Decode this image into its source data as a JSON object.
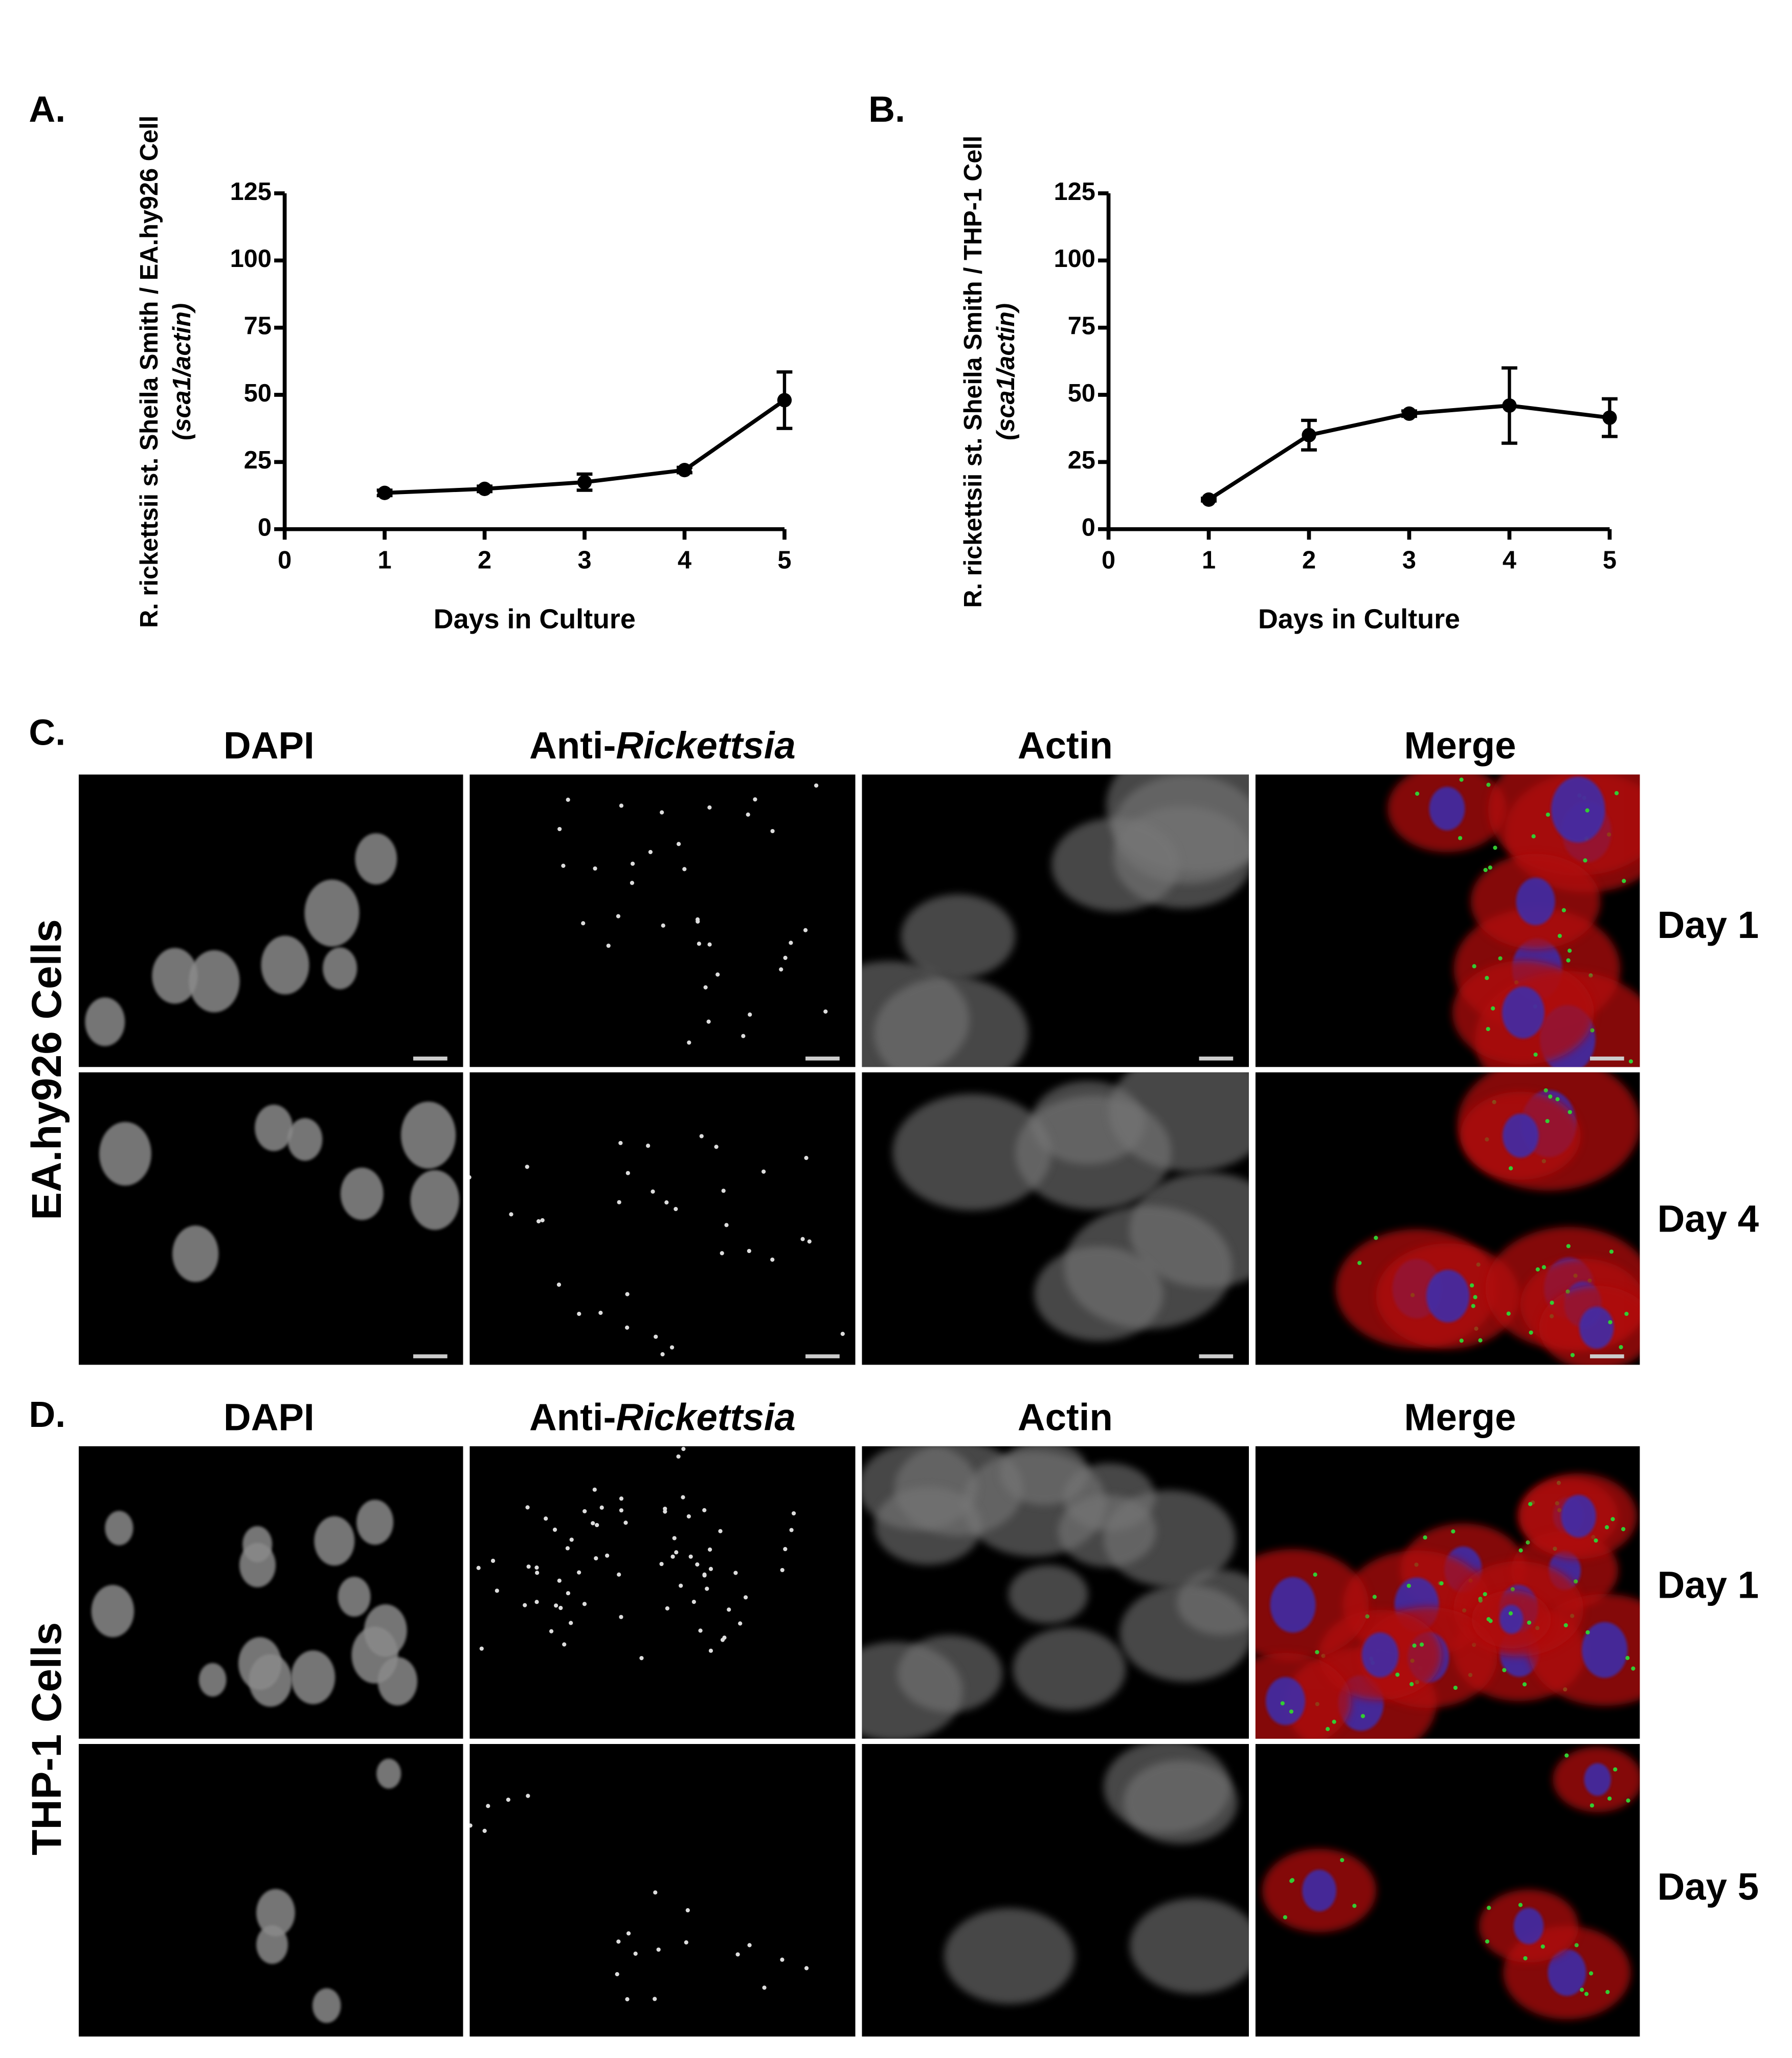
{
  "chart_data": [
    {
      "type": "line",
      "panel_label": "A.",
      "ylabel": [
        "R. rickettsii st. Sheila Smith / EA.hy926 Cell",
        "(sca1/actin)"
      ],
      "xlabel": "Days in Culture",
      "x": [
        1,
        2,
        3,
        4,
        5
      ],
      "values": [
        13.5,
        15,
        17.5,
        22,
        48
      ],
      "errors": [
        1,
        1,
        3,
        1,
        10.5
      ],
      "color": "#000000",
      "xlim": [
        0,
        5
      ],
      "xticks": [
        0,
        1,
        2,
        3,
        4,
        5
      ],
      "ylim": [
        0,
        125
      ],
      "yticks": [
        0,
        25,
        50,
        75,
        100,
        125
      ]
    },
    {
      "type": "line",
      "panel_label": "B.",
      "ylabel": [
        "R. rickettsii st. Sheila Smith / THP-1 Cell",
        "(sca1/actin)"
      ],
      "xlabel": "Days in Culture",
      "x": [
        1,
        2,
        3,
        4,
        5
      ],
      "values": [
        11,
        35,
        43,
        46,
        41.5
      ],
      "errors": [
        0.5,
        5.5,
        1,
        14,
        7
      ],
      "color": "#000000",
      "xlim": [
        0,
        5
      ],
      "xticks": [
        0,
        1,
        2,
        3,
        4,
        5
      ],
      "ylim": [
        0,
        125
      ],
      "yticks": [
        0,
        25,
        50,
        75,
        100,
        125
      ]
    }
  ],
  "microscopy": {
    "panels": [
      {
        "label": "C.",
        "side_label": "EA.hy926 Cells",
        "rows": [
          "Day 1",
          "Day 4"
        ],
        "headers": [
          [
            {
              "text": "DAPI",
              "italic": false
            }
          ],
          [
            {
              "text": "Anti-",
              "italic": false
            },
            {
              "text": "Rickettsia",
              "italic": true
            }
          ],
          [
            {
              "text": "Actin",
              "italic": false
            }
          ],
          [
            {
              "text": "Merge",
              "italic": false
            }
          ]
        ]
      },
      {
        "label": "D.",
        "side_label": "THP-1 Cells",
        "rows": [
          "Day 1",
          "Day 5"
        ],
        "headers": [
          [
            {
              "text": "DAPI",
              "italic": false
            }
          ],
          [
            {
              "text": "Anti-",
              "italic": false
            },
            {
              "text": "Rickettsia",
              "italic": true
            }
          ],
          [
            {
              "text": "Actin",
              "italic": false
            }
          ],
          [
            {
              "text": "Merge",
              "italic": false
            }
          ]
        ]
      }
    ]
  }
}
